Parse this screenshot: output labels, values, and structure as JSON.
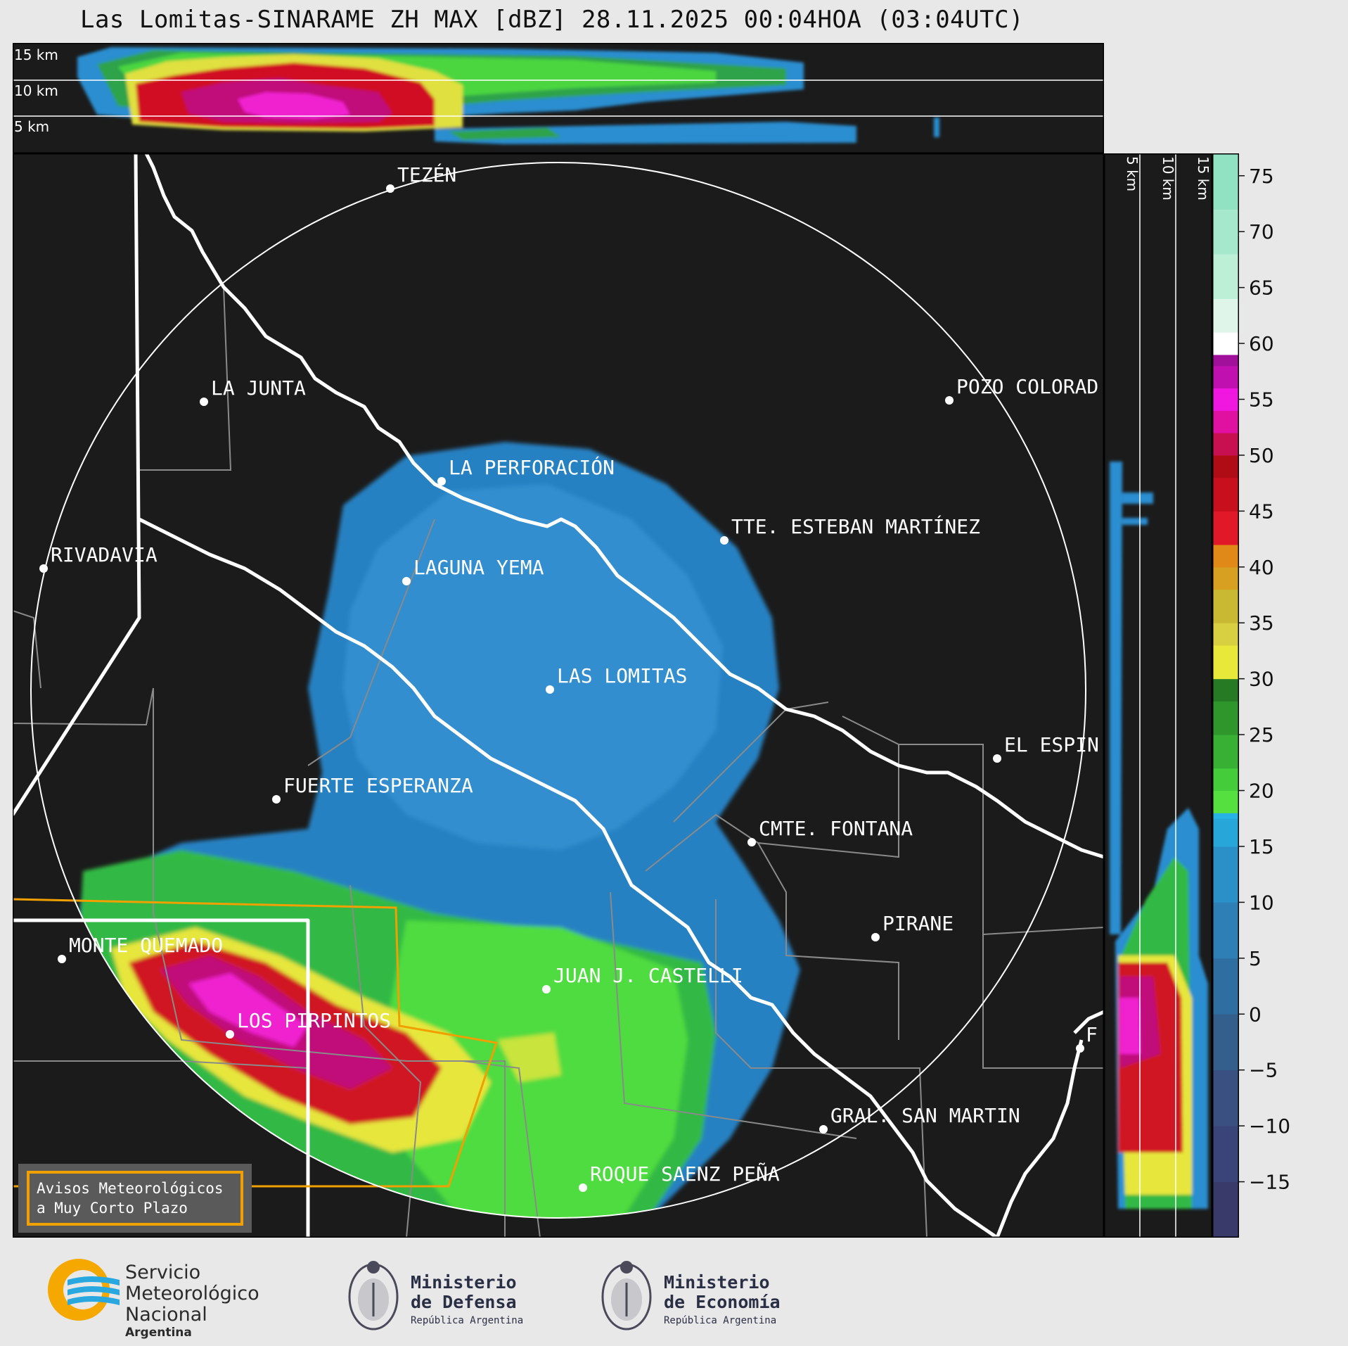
{
  "title": "Las Lomitas-SINARAME ZH MAX [dBZ] 28.11.2025 00:04HOA (03:04UTC)",
  "height_labels": [
    "15 km",
    "10 km",
    "5 km"
  ],
  "cities": [
    {
      "name": "TEZÉN"
    },
    {
      "name": "LA JUNTA"
    },
    {
      "name": "POZO COLORAD"
    },
    {
      "name": "LA PERFORACIÓN"
    },
    {
      "name": "TTE. ESTEBAN MARTÍNEZ"
    },
    {
      "name": "RIVADAVIA"
    },
    {
      "name": "LAGUNA YEMA"
    },
    {
      "name": "LAS LOMITAS"
    },
    {
      "name": "EL ESPIN"
    },
    {
      "name": "FUERTE ESPERANZA"
    },
    {
      "name": "CMTE. FONTANA"
    },
    {
      "name": "PIRANE"
    },
    {
      "name": "MONTE QUEMADO"
    },
    {
      "name": "JUAN J. CASTELLI"
    },
    {
      "name": "LOS PIRPINTOS"
    },
    {
      "name": "F"
    },
    {
      "name": "GRAL. SAN MARTIN"
    },
    {
      "name": "ROQUE SAENZ PEÑA"
    }
  ],
  "warning_legend": {
    "line1": "Avisos Meteorológicos",
    "line2": "a Muy Corto Plazo",
    "color": "#f0a000"
  },
  "colorbar": {
    "unit": "dBZ",
    "range": [
      -20,
      77
    ],
    "ticks": [
      75,
      70,
      65,
      60,
      55,
      50,
      45,
      40,
      35,
      30,
      25,
      20,
      15,
      10,
      5,
      0,
      -5,
      -10,
      -15
    ],
    "tick_labels": [
      "75",
      "70",
      "65",
      "60",
      "55",
      "50",
      "45",
      "40",
      "35",
      "30",
      "25",
      "20",
      "15",
      "10",
      "5",
      "0",
      "−5",
      "−10",
      "−15"
    ]
  },
  "logos": {
    "smn": {
      "line1": "Servicio",
      "line2": "Meteorológico",
      "line3": "Nacional",
      "line4": "Argentina"
    },
    "defensa": {
      "line1": "Ministerio",
      "line2": "de Defensa",
      "line3": "República Argentina"
    },
    "economia": {
      "line1": "Ministerio",
      "line2": "de Economía",
      "line3": "República Argentina"
    }
  },
  "colors": {
    "background": "#1b1b1b",
    "border": "#ffffff",
    "warning": "#f0a000"
  }
}
